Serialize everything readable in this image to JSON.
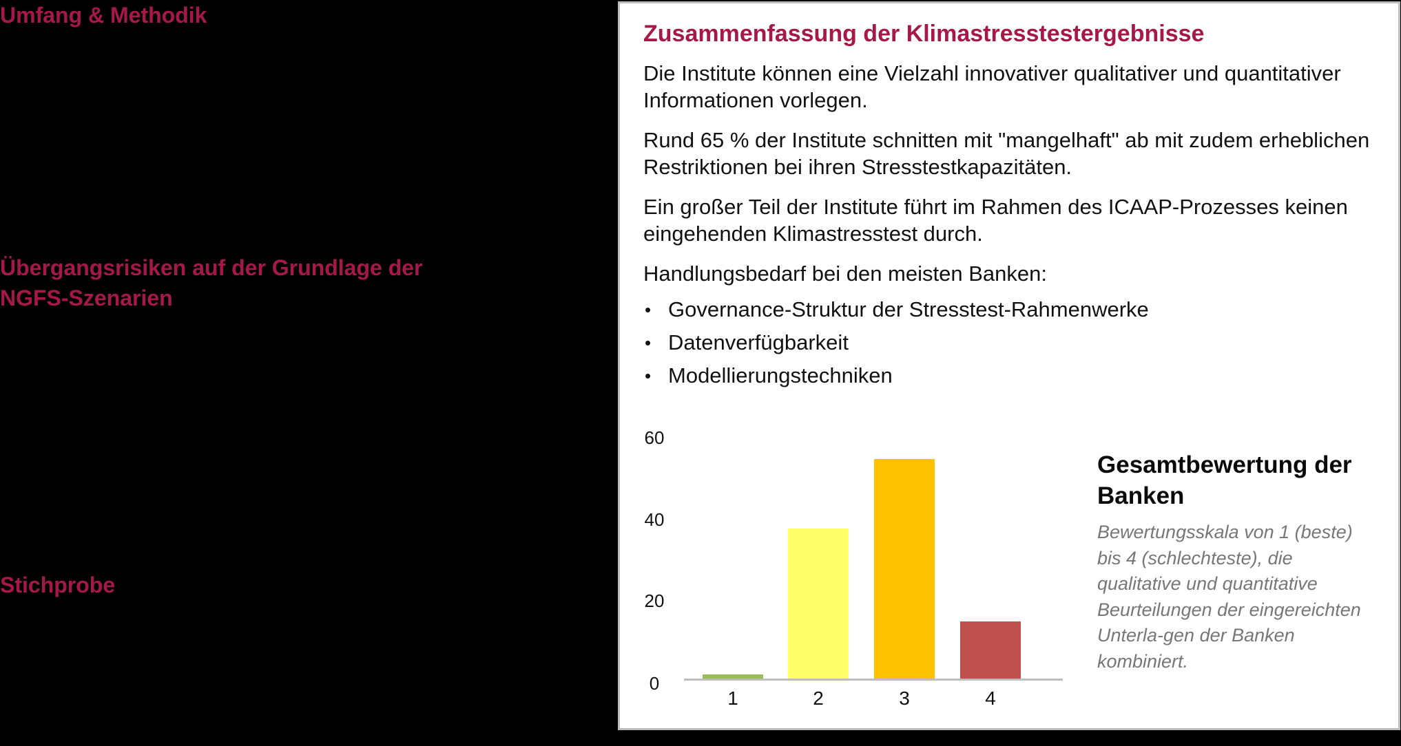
{
  "left_headings": [
    "Umfang & Methodik",
    "Übergangsrisiken auf der Grundlage der NGFS-Szenarien",
    "Stichprobe"
  ],
  "panel": {
    "title": "Zusammenfassung der Klimastresstestergebnisse",
    "paragraphs": [
      "Die Institute können eine Vielzahl innovativer qualitativer und quantitativer Informationen vorlegen.",
      "Rund 65 % der Institute schnitten mit \"mangelhaft\" ab mit zudem erheblichen Restriktionen bei ihren Stresstestkapazitäten.",
      "Ein großer Teil der Institute führt im Rahmen des ICAAP-Prozesses keinen eingehenden Klimastresstest durch.",
      "Handlungsbedarf bei den meisten Banken:"
    ],
    "bullet_glyph": "•",
    "bullets": [
      "Governance-Struktur der Stresstest-Rahmenwerke",
      "Datenverfügbarkeit",
      "Modellierungstechniken"
    ],
    "legend": {
      "title": "Gesamtbewertung der Banken",
      "description": "Bewertungsskala von 1 (beste) bis 4 (schlechteste), die qualitative und quantitative Beurteilungen der eingereichten Unterla-gen der Banken kombiniert."
    }
  },
  "colors": {
    "accent": "#A6184A",
    "bar_1": "#9BBB59",
    "bar_2": "#FFFF66",
    "bar_3": "#FFC000",
    "bar_4": "#C0504D",
    "axis": "#BDBDBD"
  },
  "chart_data": {
    "type": "bar",
    "title": "Gesamtbewertung der Banken",
    "subtitle": "Bewertungsskala von 1 (beste) bis 4 (schlechteste), die qualitative und quantitative Beurteilungen der eingereichten Unterlagen der Banken kombiniert.",
    "categories": [
      "1",
      "2",
      "3",
      "4"
    ],
    "values": [
      1,
      37,
      54,
      14
    ],
    "bar_colors": [
      "#9BBB59",
      "#FFFF66",
      "#FFC000",
      "#C0504D"
    ],
    "xlabel": "",
    "ylabel": "",
    "yticks": [
      "0",
      "20",
      "40",
      "60"
    ],
    "ylim": [
      0,
      60
    ],
    "grid": false,
    "legend_position": "right (text annotation)"
  }
}
